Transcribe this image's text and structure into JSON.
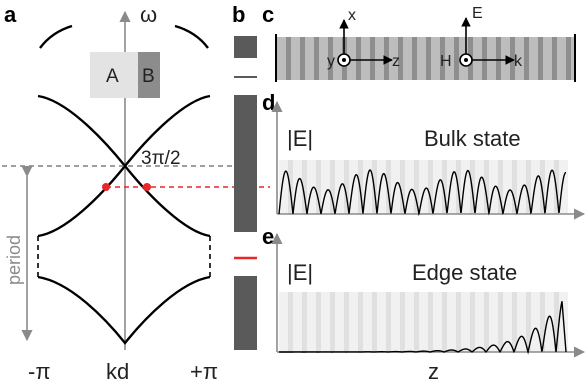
{
  "panel_labels": {
    "a": "a",
    "b": "b",
    "c": "c",
    "d": "d",
    "e": "e"
  },
  "panel_a": {
    "y_axis_label": "ω",
    "x_ticks": [
      "-π",
      "kd",
      "+π"
    ],
    "crossing_label": "3π/2",
    "period_label": "period",
    "unit_cell": {
      "layer_a": "A",
      "layer_b": "B"
    }
  },
  "panel_c": {
    "left_axes": {
      "up": "x",
      "out": "y",
      "right": "z"
    },
    "right_axes": {
      "up": "E",
      "out": "H",
      "right": "k"
    }
  },
  "panel_d": {
    "ylabel": "|E|",
    "title": "Bulk state"
  },
  "panel_e": {
    "ylabel": "|E|",
    "title": "Edge state",
    "xlabel": "z"
  },
  "colors": {
    "highlight": "#e8262c",
    "dark_band": "#5a5a5a",
    "light_layer": "#e3e3e3",
    "dark_layer": "#8c8c8c"
  }
}
